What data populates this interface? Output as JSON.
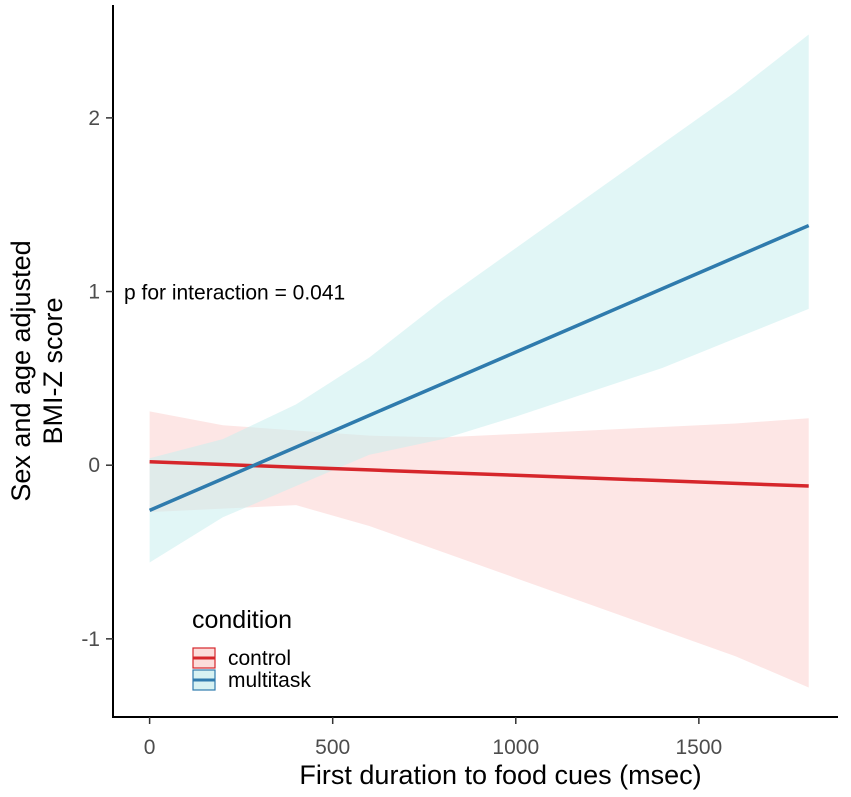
{
  "chart_data": {
    "type": "line",
    "title": "",
    "xlabel": "First duration to food cues (msec)",
    "ylabel_lines": [
      "Sex and age adjusted",
      "BMI-Z score"
    ],
    "xlim": [
      -100,
      1880
    ],
    "ylim": [
      -1.45,
      2.65
    ],
    "x_ticks": [
      0,
      500,
      1000,
      1500
    ],
    "x_tick_labels": [
      "0",
      "500",
      "1000",
      "1500"
    ],
    "y_ticks": [
      -1,
      0,
      1,
      2
    ],
    "y_tick_labels": [
      "-1",
      "0",
      "1",
      "2"
    ],
    "grid": false,
    "annotation": {
      "text": "p for interaction = 0.041",
      "x": -70,
      "y": 1.0
    },
    "legend": {
      "title": "condition",
      "position": "bottom-left"
    },
    "series": [
      {
        "name": "control",
        "color": "#d6262b",
        "band_color": "#fbd2cf",
        "x": [
          0,
          200,
          400,
          600,
          800,
          1000,
          1200,
          1400,
          1600,
          1800
        ],
        "y": [
          0.02,
          0.004,
          -0.012,
          -0.027,
          -0.043,
          -0.058,
          -0.074,
          -0.089,
          -0.105,
          -0.12
        ],
        "lower": [
          -0.27,
          -0.25,
          -0.23,
          -0.35,
          -0.5,
          -0.65,
          -0.8,
          -0.95,
          -1.1,
          -1.28
        ],
        "upper": [
          0.31,
          0.23,
          0.2,
          0.17,
          0.16,
          0.18,
          0.2,
          0.22,
          0.24,
          0.27
        ]
      },
      {
        "name": "multitask",
        "color": "#2f7bad",
        "band_color": "#c9eeee",
        "x": [
          0,
          200,
          400,
          600,
          800,
          1000,
          1200,
          1400,
          1600,
          1800
        ],
        "y": [
          -0.26,
          -0.078,
          0.104,
          0.287,
          0.469,
          0.651,
          0.833,
          1.016,
          1.198,
          1.38
        ],
        "lower": [
          -0.56,
          -0.3,
          -0.12,
          0.06,
          0.15,
          0.28,
          0.42,
          0.56,
          0.73,
          0.9
        ],
        "upper": [
          0.04,
          0.15,
          0.35,
          0.62,
          0.95,
          1.25,
          1.55,
          1.85,
          2.15,
          2.48
        ]
      }
    ]
  }
}
